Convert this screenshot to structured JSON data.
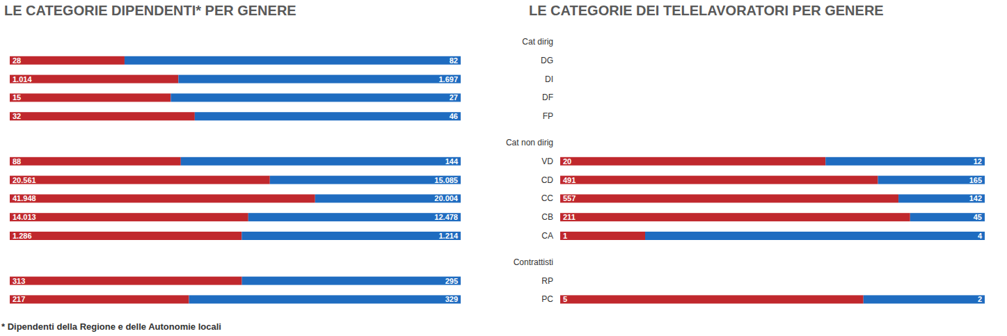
{
  "chart_data": [
    {
      "type": "bar",
      "orientation": "horizontal",
      "stacked": true,
      "data_labels": true,
      "tick_labels": false,
      "title": "LE CATEGORIE DIPENDENTI*  PER GENERE",
      "annotations": [
        "* Dipendenti della Regione e delle Autonomie locali"
      ],
      "categories": [
        "Cat dirig",
        "DG",
        "DI",
        "DF",
        "FP",
        "Cat non dirig",
        "VD",
        "CD",
        "CC",
        "CB",
        "CA",
        "Contrattisti",
        "RP",
        "PC"
      ],
      "series": [
        {
          "color": "#c0282d",
          "values": [
            null,
            28,
            1014,
            15,
            32,
            null,
            88,
            20561,
            41948,
            14013,
            1286,
            null,
            313,
            217
          ],
          "value_labels": [
            null,
            "28",
            "1.014",
            "15",
            "32",
            null,
            "88",
            "20.561",
            "41.948",
            "14.013",
            "1.286",
            null,
            "313",
            "217"
          ]
        },
        {
          "color": "#1f6cc0",
          "values": [
            null,
            82,
            1697,
            27,
            46,
            null,
            144,
            15085,
            20004,
            12478,
            1214,
            null,
            295,
            329
          ],
          "value_labels": [
            null,
            "82",
            "1.697",
            "27",
            "46",
            null,
            "144",
            "15.085",
            "20.004",
            "12.478",
            "1.214",
            null,
            "295",
            "329"
          ]
        }
      ]
    },
    {
      "type": "bar",
      "orientation": "horizontal",
      "stacked": true,
      "data_labels": true,
      "tick_labels": "y",
      "title": "LE CATEGORIE DEI TELELAVORATORI PER GENERE",
      "categories": [
        "Cat dirig",
        "DG",
        "DI",
        "DF",
        "FP",
        "Cat non dirig",
        "VD",
        "CD",
        "CC",
        "CB",
        "CA",
        "Contrattisti",
        "RP",
        "PC"
      ],
      "series": [
        {
          "color": "#c0282d",
          "values": [
            null,
            null,
            null,
            null,
            null,
            null,
            20,
            491,
            557,
            211,
            1,
            null,
            null,
            5
          ]
        },
        {
          "color": "#1f6cc0",
          "values": [
            null,
            null,
            null,
            null,
            null,
            null,
            12,
            165,
            142,
            45,
            4,
            null,
            null,
            2
          ]
        }
      ]
    }
  ]
}
